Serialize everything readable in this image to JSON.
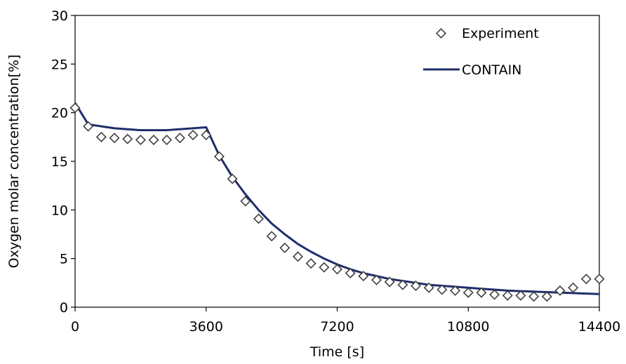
{
  "chart_data": {
    "type": "line",
    "xlabel": "Time [s]",
    "ylabel": "Oxygen  molar concentration[%]",
    "xlim": [
      0,
      14400
    ],
    "ylim": [
      0,
      30
    ],
    "x_ticks": [
      "0",
      "3600",
      "7200",
      "10800",
      "14400"
    ],
    "x_tick_values": [
      0,
      3600,
      7200,
      10800,
      14400
    ],
    "y_ticks": [
      "0",
      "5",
      "10",
      "15",
      "20",
      "25",
      "30"
    ],
    "y_tick_values": [
      0,
      5,
      10,
      15,
      20,
      25,
      30
    ],
    "grid": false,
    "legend_position": "top-right",
    "series": [
      {
        "name": "Experiment",
        "kind": "marker",
        "marker": "diamond-open",
        "color": "#404040",
        "x": [
          0,
          360,
          720,
          1080,
          1440,
          1800,
          2160,
          2520,
          2880,
          3240,
          3600,
          3960,
          4320,
          4680,
          5040,
          5400,
          5760,
          6120,
          6480,
          6840,
          7200,
          7560,
          7920,
          8280,
          8640,
          9000,
          9360,
          9720,
          10080,
          10440,
          10800,
          11160,
          11520,
          11880,
          12240,
          12600,
          12960,
          13320,
          13680,
          14040,
          14400
        ],
        "y": [
          20.5,
          18.6,
          17.5,
          17.4,
          17.3,
          17.2,
          17.2,
          17.2,
          17.4,
          17.7,
          17.7,
          15.5,
          13.2,
          10.9,
          9.1,
          7.3,
          6.1,
          5.2,
          4.5,
          4.1,
          3.9,
          3.5,
          3.2,
          2.8,
          2.6,
          2.3,
          2.2,
          2.0,
          1.8,
          1.7,
          1.5,
          1.5,
          1.3,
          1.2,
          1.2,
          1.1,
          1.1,
          1.7,
          2.0,
          2.9,
          2.9
        ]
      },
      {
        "name": "CONTAIN",
        "kind": "line",
        "color": "#1f2d6b",
        "x": [
          0,
          360,
          720,
          1080,
          1440,
          1800,
          2160,
          2520,
          2880,
          3240,
          3600,
          3960,
          4320,
          4680,
          5040,
          5400,
          5760,
          6120,
          6480,
          6840,
          7200,
          7560,
          7920,
          8280,
          8640,
          9000,
          9360,
          9720,
          10080,
          10440,
          10800,
          11160,
          11520,
          11880,
          12240,
          12600,
          12960,
          13320,
          13680,
          14040,
          14400
        ],
        "y": [
          21.0,
          18.8,
          18.6,
          18.4,
          18.3,
          18.2,
          18.2,
          18.2,
          18.3,
          18.4,
          18.5,
          15.6,
          13.4,
          11.6,
          10.0,
          8.6,
          7.5,
          6.5,
          5.7,
          5.0,
          4.4,
          3.9,
          3.5,
          3.2,
          2.9,
          2.7,
          2.5,
          2.3,
          2.2,
          2.1,
          2.0,
          1.9,
          1.8,
          1.7,
          1.65,
          1.6,
          1.55,
          1.5,
          1.45,
          1.4,
          1.35
        ]
      }
    ]
  }
}
